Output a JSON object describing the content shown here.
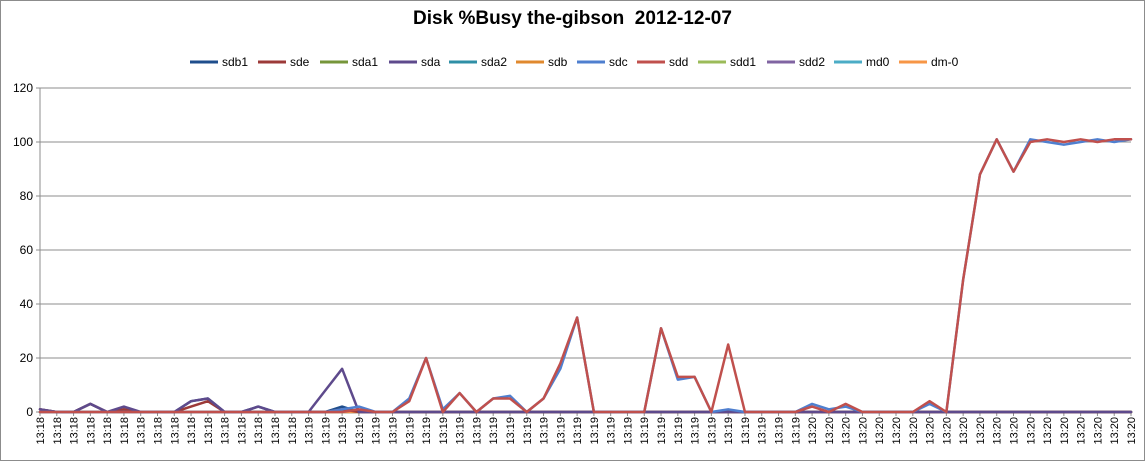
{
  "chart_data": {
    "type": "line",
    "title": "Disk %Busy the-gibson  2012-12-07",
    "xlabel": "",
    "ylabel": "",
    "ylim": [
      0,
      120
    ],
    "yticks": [
      0,
      20,
      40,
      60,
      80,
      100,
      120
    ],
    "grid": true,
    "legend_position": "top",
    "x": [
      "13:18",
      "13:18",
      "13:18",
      "13:18",
      "13:18",
      "13:18",
      "13:18",
      "13:18",
      "13:18",
      "13:18",
      "13:18",
      "13:18",
      "13:18",
      "13:18",
      "13:18",
      "13:18",
      "13:19",
      "13:19",
      "13:19",
      "13:19",
      "13:19",
      "13:19",
      "13:19",
      "13:19",
      "13:19",
      "13:19",
      "13:19",
      "13:19",
      "13:19",
      "13:19",
      "13:19",
      "13:19",
      "13:19",
      "13:19",
      "13:19",
      "13:19",
      "13:19",
      "13:19",
      "13:19",
      "13:19",
      "13:19",
      "13:19",
      "13:19",
      "13:19",
      "13:19",
      "13:19",
      "13:20",
      "13:20",
      "13:20",
      "13:20",
      "13:20",
      "13:20",
      "13:20",
      "13:20",
      "13:20",
      "13:20",
      "13:20",
      "13:20",
      "13:20",
      "13:20",
      "13:20",
      "13:20",
      "13:20",
      "13:20",
      "13:20",
      "13:20"
    ],
    "series": [
      {
        "name": "sdb1",
        "color": "#1f4e8c",
        "values": [
          1,
          0,
          0,
          3,
          0,
          1,
          0,
          0,
          0,
          4,
          5,
          0,
          0,
          2,
          0,
          0,
          0,
          0,
          2,
          0,
          0,
          0,
          0,
          0,
          0,
          0,
          0,
          0,
          0,
          0,
          0,
          0,
          0,
          0,
          0,
          0,
          0,
          0,
          0,
          0,
          0,
          0,
          0,
          0,
          0,
          0,
          0,
          0,
          0,
          0,
          0,
          0,
          0,
          0,
          0,
          0,
          0,
          0,
          0,
          0,
          0,
          0,
          0,
          0,
          0,
          0
        ]
      },
      {
        "name": "sde",
        "color": "#9c3a38",
        "values": [
          1,
          0,
          0,
          3,
          0,
          1,
          0,
          0,
          0,
          2,
          4,
          0,
          0,
          0,
          0,
          0,
          0,
          0,
          1,
          0,
          0,
          0,
          0,
          0,
          0,
          0,
          0,
          0,
          0,
          0,
          0,
          0,
          0,
          0,
          0,
          0,
          0,
          0,
          0,
          0,
          0,
          0,
          0,
          0,
          0,
          0,
          0,
          0,
          0,
          0,
          0,
          0,
          0,
          0,
          0,
          0,
          0,
          0,
          0,
          0,
          0,
          0,
          0,
          0,
          0,
          0
        ]
      },
      {
        "name": "sda1",
        "color": "#76963a",
        "values": [
          0,
          0,
          0,
          0,
          0,
          0,
          0,
          0,
          0,
          0,
          0,
          0,
          0,
          0,
          0,
          0,
          0,
          0,
          0,
          0,
          0,
          0,
          0,
          0,
          0,
          0,
          0,
          0,
          0,
          0,
          0,
          0,
          0,
          0,
          0,
          0,
          0,
          0,
          0,
          0,
          0,
          0,
          0,
          0,
          0,
          0,
          0,
          0,
          0,
          0,
          0,
          0,
          0,
          0,
          0,
          0,
          0,
          0,
          0,
          0,
          0,
          0,
          0,
          0,
          0,
          0
        ]
      },
      {
        "name": "sda",
        "color": "#5e4a8c",
        "values": [
          1,
          0,
          0,
          3,
          0,
          2,
          0,
          0,
          0,
          4,
          5,
          0,
          0,
          2,
          0,
          0,
          0,
          8,
          16,
          0,
          0,
          0,
          0,
          0,
          0,
          0,
          0,
          0,
          0,
          0,
          0,
          0,
          0,
          0,
          0,
          0,
          0,
          0,
          0,
          0,
          0,
          0,
          0,
          0,
          0,
          0,
          0,
          0,
          0,
          0,
          0,
          0,
          0,
          0,
          0,
          0,
          0,
          0,
          0,
          0,
          0,
          0,
          0,
          0,
          0,
          0
        ]
      },
      {
        "name": "sda2",
        "color": "#2f8fa6",
        "values": [
          0,
          0,
          0,
          0,
          0,
          0,
          0,
          0,
          0,
          0,
          0,
          0,
          0,
          0,
          0,
          0,
          0,
          0,
          0,
          0,
          0,
          0,
          0,
          0,
          0,
          0,
          0,
          0,
          0,
          0,
          0,
          0,
          0,
          0,
          0,
          0,
          0,
          0,
          0,
          0,
          0,
          0,
          0,
          0,
          0,
          0,
          0,
          0,
          0,
          0,
          0,
          0,
          0,
          0,
          0,
          0,
          0,
          0,
          0,
          0,
          0,
          0,
          0,
          0,
          0,
          0
        ]
      },
      {
        "name": "sdb",
        "color": "#e0892e",
        "values": [
          0,
          0,
          0,
          0,
          0,
          0,
          0,
          0,
          0,
          0,
          0,
          0,
          0,
          0,
          0,
          0,
          0,
          0,
          0,
          0,
          0,
          0,
          0,
          0,
          0,
          0,
          0,
          0,
          0,
          0,
          0,
          0,
          0,
          0,
          0,
          0,
          0,
          0,
          0,
          0,
          0,
          0,
          0,
          0,
          0,
          0,
          0,
          0,
          0,
          0,
          0,
          0,
          0,
          0,
          0,
          0,
          0,
          0,
          0,
          0,
          0,
          0,
          0,
          0,
          0,
          0
        ]
      },
      {
        "name": "sdc",
        "color": "#4f7fcf",
        "values": [
          0,
          0,
          0,
          0,
          0,
          0,
          0,
          0,
          0,
          0,
          0,
          0,
          0,
          0,
          0,
          0,
          0,
          0,
          1,
          2,
          0,
          0,
          5,
          20,
          1,
          7,
          0,
          5,
          6,
          0,
          5,
          16,
          35,
          0,
          0,
          0,
          0,
          31,
          12,
          13,
          0,
          1,
          0,
          0,
          0,
          0,
          3,
          1,
          2,
          0,
          0,
          0,
          0,
          3,
          0,
          49,
          88,
          101,
          89,
          101,
          100,
          99,
          100,
          101,
          100,
          101
        ]
      },
      {
        "name": "sdd",
        "color": "#c0504d",
        "values": [
          0,
          0,
          0,
          0,
          0,
          0,
          0,
          0,
          0,
          0,
          0,
          0,
          0,
          0,
          0,
          0,
          0,
          0,
          0,
          1,
          0,
          0,
          4,
          20,
          0,
          7,
          0,
          5,
          5,
          0,
          5,
          18,
          35,
          0,
          0,
          0,
          0,
          31,
          13,
          13,
          0,
          25,
          0,
          0,
          0,
          0,
          2,
          0,
          3,
          0,
          0,
          0,
          0,
          4,
          0,
          49,
          88,
          101,
          89,
          100,
          101,
          100,
          101,
          100,
          101,
          101
        ]
      },
      {
        "name": "sdd1",
        "color": "#9bbb59",
        "values": [
          0,
          0,
          0,
          0,
          0,
          0,
          0,
          0,
          0,
          0,
          0,
          0,
          0,
          0,
          0,
          0,
          0,
          0,
          0,
          0,
          0,
          0,
          0,
          0,
          0,
          0,
          0,
          0,
          0,
          0,
          0,
          0,
          0,
          0,
          0,
          0,
          0,
          0,
          0,
          0,
          0,
          0,
          0,
          0,
          0,
          0,
          0,
          0,
          0,
          0,
          0,
          0,
          0,
          0,
          0,
          0,
          0,
          0,
          0,
          0,
          0,
          0,
          0,
          0,
          0,
          0
        ]
      },
      {
        "name": "sdd2",
        "color": "#8064a2",
        "values": [
          0,
          0,
          0,
          0,
          0,
          0,
          0,
          0,
          0,
          0,
          0,
          0,
          0,
          0,
          0,
          0,
          0,
          0,
          0,
          0,
          0,
          0,
          0,
          0,
          0,
          0,
          0,
          0,
          0,
          0,
          0,
          0,
          0,
          0,
          0,
          0,
          0,
          0,
          0,
          0,
          0,
          0,
          0,
          0,
          0,
          0,
          0,
          0,
          0,
          0,
          0,
          0,
          0,
          0,
          0,
          0,
          0,
          0,
          0,
          0,
          0,
          0,
          0,
          0,
          0,
          0
        ]
      },
      {
        "name": "md0",
        "color": "#4bacc6",
        "values": [
          0,
          0,
          0,
          0,
          0,
          0,
          0,
          0,
          0,
          0,
          0,
          0,
          0,
          0,
          0,
          0,
          0,
          0,
          0,
          0,
          0,
          0,
          0,
          0,
          0,
          0,
          0,
          0,
          0,
          0,
          0,
          0,
          0,
          0,
          0,
          0,
          0,
          0,
          0,
          0,
          0,
          0,
          0,
          0,
          0,
          0,
          0,
          0,
          0,
          0,
          0,
          0,
          0,
          0,
          0,
          0,
          0,
          0,
          0,
          0,
          0,
          0,
          0,
          0,
          0,
          0
        ]
      },
      {
        "name": "dm-0",
        "color": "#f79646",
        "values": [
          0,
          0,
          0,
          0,
          0,
          0,
          0,
          0,
          0,
          0,
          0,
          0,
          0,
          0,
          0,
          0,
          0,
          0,
          0,
          0,
          0,
          0,
          0,
          0,
          0,
          0,
          0,
          0,
          0,
          0,
          0,
          0,
          0,
          0,
          0,
          0,
          0,
          0,
          0,
          0,
          0,
          0,
          0,
          0,
          0,
          0,
          0,
          0,
          0,
          0,
          0,
          0,
          0,
          0,
          0,
          0,
          0,
          0,
          0,
          0,
          0,
          0,
          0,
          0,
          0,
          0
        ]
      }
    ]
  }
}
